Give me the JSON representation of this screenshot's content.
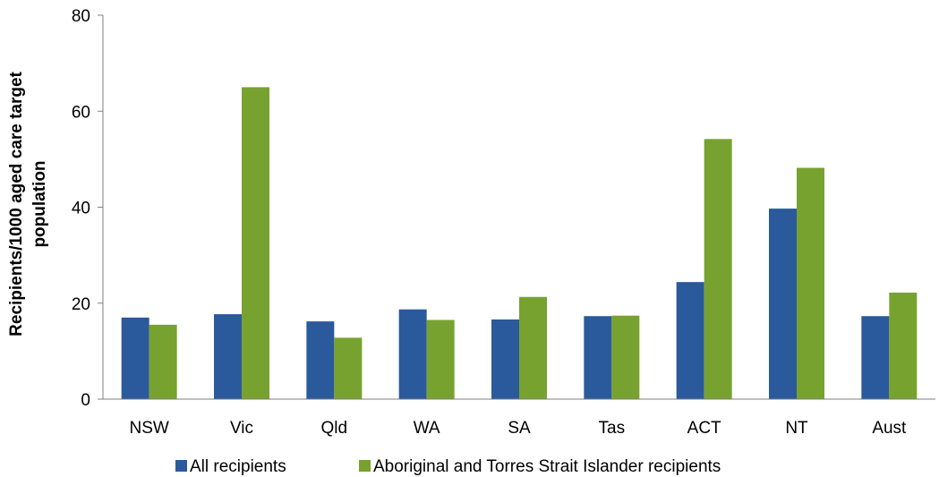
{
  "chart_data": {
    "type": "bar",
    "categories": [
      "NSW",
      "Vic",
      "Qld",
      "WA",
      "SA",
      "Tas",
      "ACT",
      "NT",
      "Aust"
    ],
    "series": [
      {
        "name": "All recipients",
        "values": [
          17.0,
          17.7,
          16.2,
          18.7,
          16.6,
          17.3,
          24.4,
          39.7,
          17.3
        ]
      },
      {
        "name": "Aboriginal and Torres Strait Islander recipients",
        "values": [
          15.5,
          65.0,
          12.8,
          16.5,
          21.3,
          17.4,
          54.2,
          48.2,
          22.2
        ]
      }
    ],
    "title": "",
    "xlabel": "",
    "ylabel": "Recipients/1000 aged care target population",
    "ylabel_lines": [
      "Recipients/1000 aged care target",
      "population"
    ],
    "ylim": [
      0,
      80
    ],
    "yticks": [
      0,
      20,
      40,
      60,
      80
    ],
    "grid": false,
    "legend_position": "bottom",
    "colors": {
      "All recipients": "#2a5a9b",
      "Aboriginal and Torres Strait Islander recipients": "#77a22f"
    }
  }
}
